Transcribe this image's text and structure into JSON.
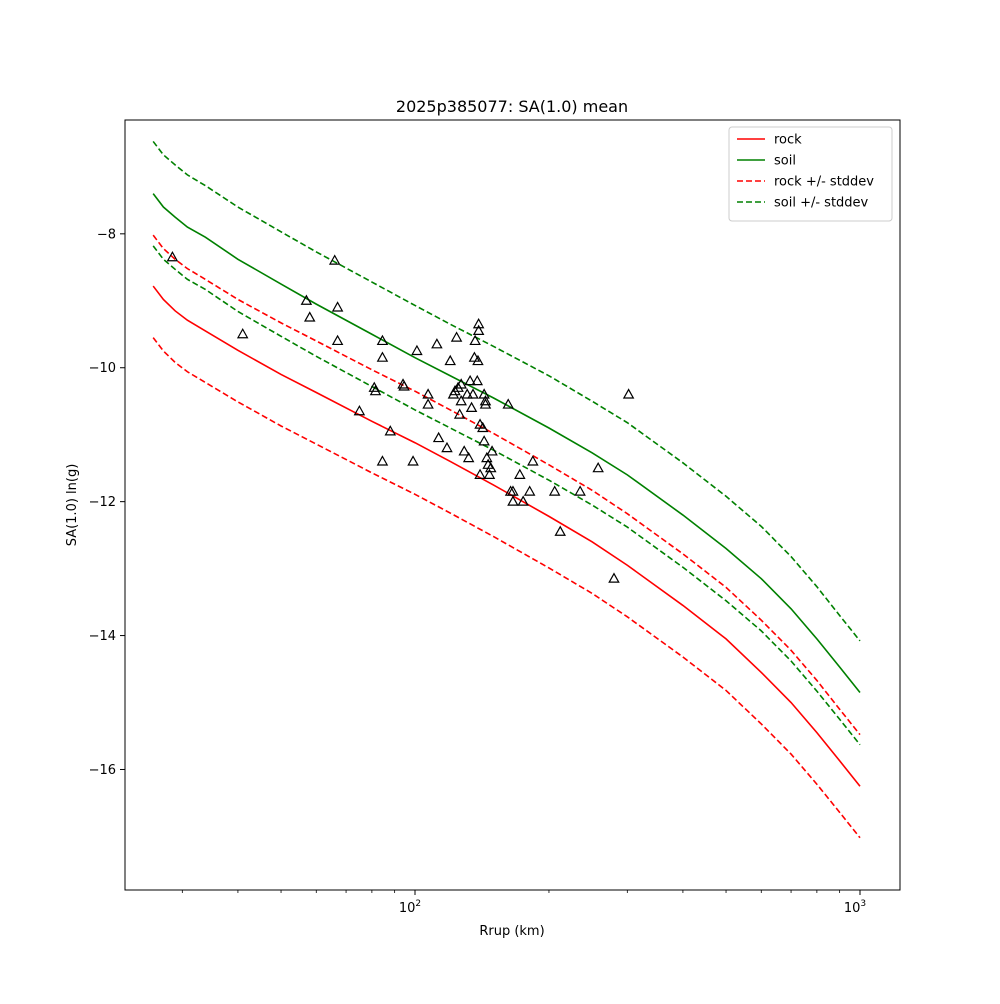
{
  "chart_data": {
    "type": "line",
    "title": "2025p385077: SA(1.0) mean",
    "xlabel": "Rrup (km)",
    "ylabel": "SA(1.0) ln(g)",
    "xscale": "log",
    "xlim": [
      22.3,
      1230
    ],
    "ylim": [
      -17.8,
      -6.3
    ],
    "yticks": [
      -8,
      -10,
      -12,
      -14,
      -16
    ],
    "ytick_labels": [
      "−8",
      "−10",
      "−12",
      "−14",
      "−16"
    ],
    "xticks_major": [
      {
        "value": 100,
        "base": "10",
        "exp": "2"
      },
      {
        "value": 1000,
        "base": "10",
        "exp": "3"
      }
    ],
    "grid": false,
    "legend_position": "top-right",
    "series": [
      {
        "name": "rock",
        "color": "#ff0000",
        "style": "solid",
        "x": [
          25.8,
          27.2,
          28.9,
          30.8,
          33.8,
          40,
          50,
          60,
          80,
          100,
          120,
          150,
          200,
          250,
          300,
          400,
          500,
          600,
          700,
          800,
          900,
          1000
        ],
        "y": [
          -8.78,
          -8.98,
          -9.15,
          -9.29,
          -9.45,
          -9.74,
          -10.1,
          -10.37,
          -10.8,
          -11.12,
          -11.4,
          -11.75,
          -12.22,
          -12.6,
          -12.95,
          -13.55,
          -14.05,
          -14.55,
          -15.0,
          -15.45,
          -15.87,
          -16.25
        ]
      },
      {
        "name": "soil",
        "color": "#008000",
        "style": "solid",
        "x": [
          25.8,
          27.2,
          28.9,
          30.8,
          33.8,
          40,
          50,
          60,
          80,
          100,
          120,
          150,
          200,
          250,
          300,
          400,
          500,
          600,
          700,
          800,
          900,
          1000
        ],
        "y": [
          -7.4,
          -7.6,
          -7.75,
          -7.9,
          -8.05,
          -8.38,
          -8.75,
          -9.05,
          -9.5,
          -9.85,
          -10.12,
          -10.45,
          -10.9,
          -11.27,
          -11.6,
          -12.2,
          -12.7,
          -13.15,
          -13.6,
          -14.05,
          -14.47,
          -14.85
        ]
      },
      {
        "name": "rock +/- stddev",
        "color": "#ff0000",
        "style": "dashed",
        "x": [
          25.8,
          27.2,
          28.9,
          30.8,
          33.8,
          40,
          50,
          60,
          80,
          100,
          120,
          150,
          200,
          250,
          300,
          400,
          500,
          600,
          700,
          800,
          900,
          1000
        ],
        "y": [
          -8.02,
          -8.22,
          -8.38,
          -8.52,
          -8.68,
          -8.98,
          -9.33,
          -9.6,
          -10.03,
          -10.35,
          -10.63,
          -10.98,
          -11.45,
          -11.83,
          -12.18,
          -12.78,
          -13.28,
          -13.77,
          -14.22,
          -14.67,
          -15.1,
          -15.48
        ]
      },
      {
        "name": "rock +/- stddev",
        "color": "#ff0000",
        "style": "dashed",
        "legend": false,
        "x": [
          25.8,
          27.2,
          28.9,
          30.8,
          33.8,
          40,
          50,
          60,
          80,
          100,
          120,
          150,
          200,
          250,
          300,
          400,
          500,
          600,
          700,
          800,
          900,
          1000
        ],
        "y": [
          -9.55,
          -9.75,
          -9.92,
          -10.06,
          -10.22,
          -10.51,
          -10.87,
          -11.14,
          -11.57,
          -11.89,
          -12.17,
          -12.52,
          -12.99,
          -13.37,
          -13.72,
          -14.32,
          -14.82,
          -15.32,
          -15.77,
          -16.22,
          -16.64,
          -17.02
        ]
      },
      {
        "name": "soil +/- stddev",
        "color": "#008000",
        "style": "dashed",
        "x": [
          25.8,
          27.2,
          28.9,
          30.8,
          33.8,
          40,
          50,
          60,
          80,
          100,
          120,
          150,
          200,
          250,
          300,
          400,
          500,
          600,
          700,
          800,
          900,
          1000
        ],
        "y": [
          -6.62,
          -6.82,
          -6.97,
          -7.12,
          -7.28,
          -7.6,
          -7.97,
          -8.27,
          -8.72,
          -9.07,
          -9.35,
          -9.68,
          -10.12,
          -10.5,
          -10.82,
          -11.42,
          -11.92,
          -12.37,
          -12.82,
          -13.27,
          -13.7,
          -14.08
        ]
      },
      {
        "name": "soil +/- stddev",
        "color": "#008000",
        "style": "dashed",
        "legend": false,
        "x": [
          25.8,
          27.2,
          28.9,
          30.8,
          33.8,
          40,
          50,
          60,
          80,
          100,
          120,
          150,
          200,
          250,
          300,
          400,
          500,
          600,
          700,
          800,
          900,
          1000
        ],
        "y": [
          -8.18,
          -8.38,
          -8.53,
          -8.68,
          -8.83,
          -9.16,
          -9.53,
          -9.83,
          -10.28,
          -10.63,
          -10.9,
          -11.23,
          -11.68,
          -12.05,
          -12.38,
          -12.98,
          -13.48,
          -13.93,
          -14.38,
          -14.83,
          -15.25,
          -15.63
        ]
      }
    ],
    "observations": {
      "marker": "triangle",
      "color": "#000000",
      "points": [
        {
          "x": 28.5,
          "y": -8.35
        },
        {
          "x": 41,
          "y": -9.5
        },
        {
          "x": 57,
          "y": -9.0
        },
        {
          "x": 58,
          "y": -9.25
        },
        {
          "x": 66,
          "y": -8.4
        },
        {
          "x": 67,
          "y": -9.1
        },
        {
          "x": 67,
          "y": -9.6
        },
        {
          "x": 75,
          "y": -10.65
        },
        {
          "x": 81,
          "y": -10.3
        },
        {
          "x": 81.5,
          "y": -10.35
        },
        {
          "x": 84.5,
          "y": -9.6
        },
        {
          "x": 84.5,
          "y": -9.85
        },
        {
          "x": 84.5,
          "y": -11.4
        },
        {
          "x": 88,
          "y": -10.95
        },
        {
          "x": 94,
          "y": -10.25
        },
        {
          "x": 94.5,
          "y": -10.28
        },
        {
          "x": 99,
          "y": -11.4
        },
        {
          "x": 101,
          "y": -9.75
        },
        {
          "x": 107,
          "y": -10.4
        },
        {
          "x": 107,
          "y": -10.55
        },
        {
          "x": 112,
          "y": -9.65
        },
        {
          "x": 113,
          "y": -11.05
        },
        {
          "x": 118,
          "y": -11.2
        },
        {
          "x": 120,
          "y": -9.9
        },
        {
          "x": 122,
          "y": -10.4
        },
        {
          "x": 123,
          "y": -10.35
        },
        {
          "x": 124,
          "y": -9.55
        },
        {
          "x": 125,
          "y": -10.3
        },
        {
          "x": 126,
          "y": -10.7
        },
        {
          "x": 127,
          "y": -10.5
        },
        {
          "x": 127,
          "y": -10.25
        },
        {
          "x": 129,
          "y": -11.25
        },
        {
          "x": 131,
          "y": -10.4
        },
        {
          "x": 132,
          "y": -11.35
        },
        {
          "x": 133,
          "y": -10.2
        },
        {
          "x": 134,
          "y": -10.6
        },
        {
          "x": 135,
          "y": -10.4
        },
        {
          "x": 136,
          "y": -9.85
        },
        {
          "x": 136.5,
          "y": -9.6
        },
        {
          "x": 138,
          "y": -10.2
        },
        {
          "x": 138.5,
          "y": -9.9
        },
        {
          "x": 139,
          "y": -9.45
        },
        {
          "x": 139,
          "y": -9.35
        },
        {
          "x": 140,
          "y": -11.6
        },
        {
          "x": 140,
          "y": -10.85
        },
        {
          "x": 142,
          "y": -10.9
        },
        {
          "x": 143,
          "y": -10.4
        },
        {
          "x": 143,
          "y": -11.1
        },
        {
          "x": 144,
          "y": -10.5
        },
        {
          "x": 144,
          "y": -10.55
        },
        {
          "x": 145,
          "y": -11.35
        },
        {
          "x": 146,
          "y": -11.45
        },
        {
          "x": 147,
          "y": -11.6
        },
        {
          "x": 148,
          "y": -11.5
        },
        {
          "x": 149,
          "y": -11.25
        },
        {
          "x": 162,
          "y": -10.55
        },
        {
          "x": 164,
          "y": -11.85
        },
        {
          "x": 166,
          "y": -11.85
        },
        {
          "x": 166,
          "y": -12.0
        },
        {
          "x": 172,
          "y": -11.6
        },
        {
          "x": 175,
          "y": -12.0
        },
        {
          "x": 181,
          "y": -11.85
        },
        {
          "x": 184,
          "y": -11.4
        },
        {
          "x": 206,
          "y": -11.85
        },
        {
          "x": 212,
          "y": -12.45
        },
        {
          "x": 235,
          "y": -11.85
        },
        {
          "x": 258,
          "y": -11.5
        },
        {
          "x": 280,
          "y": -13.15
        },
        {
          "x": 302,
          "y": -10.4
        }
      ]
    }
  }
}
